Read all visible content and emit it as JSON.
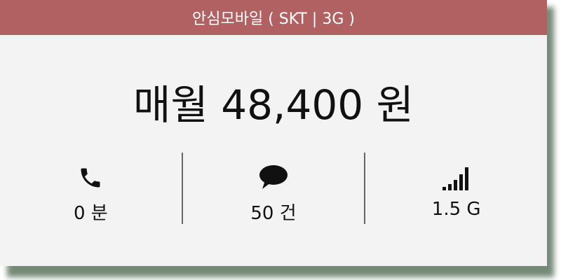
{
  "header": {
    "title": "안심모바일 ( SKT | 3G )"
  },
  "price": {
    "text": "매월 48,400 원"
  },
  "stats": [
    {
      "icon": "phone-icon",
      "label": "0 분"
    },
    {
      "icon": "message-icon",
      "label": "50 건"
    },
    {
      "icon": "signal-icon",
      "label": "1.5 G"
    }
  ],
  "colors": {
    "header_bg": "#b26163",
    "card_bg": "#f3f3f3",
    "shadow": "#5e7560"
  }
}
